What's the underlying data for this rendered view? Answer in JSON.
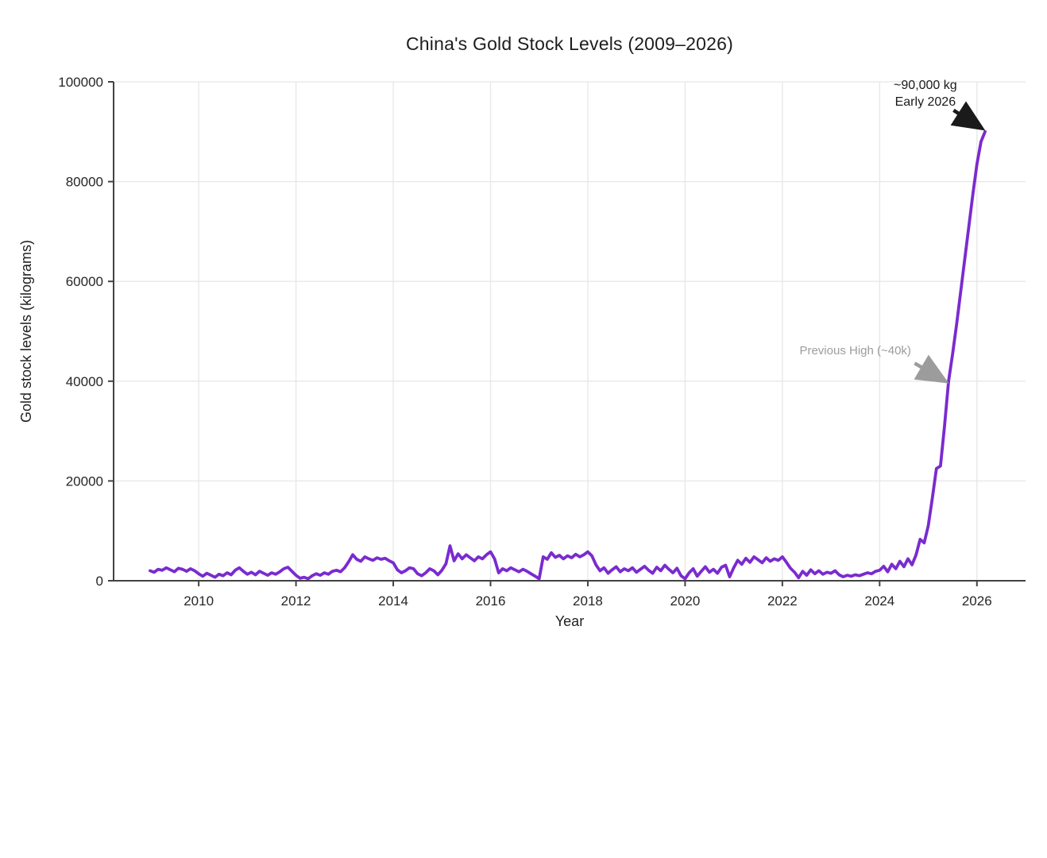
{
  "page": {
    "background_color": "#ffffff"
  },
  "chart_data": {
    "type": "line",
    "title": "China's Gold Stock Levels (2009–2026)",
    "xlabel": "Year",
    "ylabel": "Gold stock levels (kilograms)",
    "grid": true,
    "legend": false,
    "xlim": [
      2008.25,
      2027.0
    ],
    "ylim": [
      0,
      100000
    ],
    "xticks": [
      2010,
      2012,
      2014,
      2016,
      2018,
      2020,
      2022,
      2024,
      2026
    ],
    "yticks": [
      0,
      20000,
      40000,
      60000,
      80000,
      100000
    ],
    "x_start_year": 2009,
    "x_frequency": "monthly",
    "series": [
      {
        "name": "Gold stock levels",
        "color": "#7A2BCF",
        "values": [
          2000,
          1700,
          2300,
          2100,
          2600,
          2200,
          1800,
          2500,
          2300,
          1900,
          2400,
          2000,
          1400,
          900,
          1500,
          1100,
          700,
          1300,
          1000,
          1600,
          1200,
          2100,
          2600,
          1900,
          1300,
          1700,
          1200,
          1900,
          1500,
          1100,
          1600,
          1300,
          1800,
          2400,
          2700,
          1900,
          1100,
          500,
          700,
          400,
          1000,
          1400,
          1100,
          1600,
          1300,
          1900,
          2100,
          1800,
          2600,
          3800,
          5200,
          4300,
          3900,
          4800,
          4400,
          4100,
          4600,
          4300,
          4500,
          4000,
          3600,
          2200,
          1600,
          2000,
          2600,
          2400,
          1400,
          1000,
          1600,
          2400,
          2000,
          1200,
          2100,
          3400,
          7000,
          4000,
          5400,
          4400,
          5200,
          4600,
          4000,
          4800,
          4400,
          5200,
          5800,
          4400,
          1600,
          2400,
          2000,
          2600,
          2200,
          1800,
          2300,
          1900,
          1400,
          900,
          400,
          4800,
          4300,
          5600,
          4700,
          5100,
          4400,
          5000,
          4600,
          5300,
          4800,
          5200,
          5800,
          5000,
          3200,
          2000,
          2600,
          1500,
          2200,
          2800,
          1800,
          2400,
          2000,
          2600,
          1700,
          2300,
          2900,
          2100,
          1500,
          2700,
          2000,
          3100,
          2300,
          1600,
          2500,
          1000,
          400,
          1600,
          2400,
          900,
          1900,
          2800,
          1700,
          2300,
          1500,
          2700,
          3100,
          800,
          2600,
          4100,
          3300,
          4500,
          3700,
          4800,
          4200,
          3600,
          4600,
          3900,
          4400,
          4100,
          4800,
          3700,
          2500,
          1700,
          600,
          1900,
          1100,
          2200,
          1400,
          2000,
          1300,
          1700,
          1500,
          2000,
          1200,
          800,
          1100,
          900,
          1200,
          1000,
          1300,
          1600,
          1400,
          1900,
          2100,
          2900,
          1800,
          3300,
          2400,
          3900,
          2800,
          4400,
          3200,
          5200,
          8300,
          7600,
          11000,
          16500,
          22500,
          23000,
          31000,
          40000,
          45500,
          51500,
          58000,
          64500,
          71000,
          77500,
          83500,
          88000,
          90000
        ]
      }
    ],
    "annotations": [
      {
        "id": "peak",
        "lines": [
          "~90,000 kg",
          "Early 2026"
        ],
        "color": "#1a1a1a",
        "text_x": 2024.94,
        "text_y": 98600,
        "line_height_kg": 3400,
        "arrow": {
          "x1": 2025.52,
          "y1": 94300,
          "x2": 2026.08,
          "y2": 90800
        }
      },
      {
        "id": "previous-high",
        "lines": [
          "Previous High (~40k)"
        ],
        "color": "#9c9c9c",
        "text_x": 2023.5,
        "text_y": 45400,
        "line_height_kg": 3400,
        "arrow": {
          "x1": 2024.72,
          "y1": 43600,
          "x2": 2025.33,
          "y2": 40100
        }
      }
    ],
    "style": {
      "line_color": "#7A2BCF",
      "line_width": 3.8,
      "grid_color": "#e7e7e7",
      "spine_color": "#424242",
      "tick_color": "#424242",
      "text_color": "#262626"
    }
  }
}
